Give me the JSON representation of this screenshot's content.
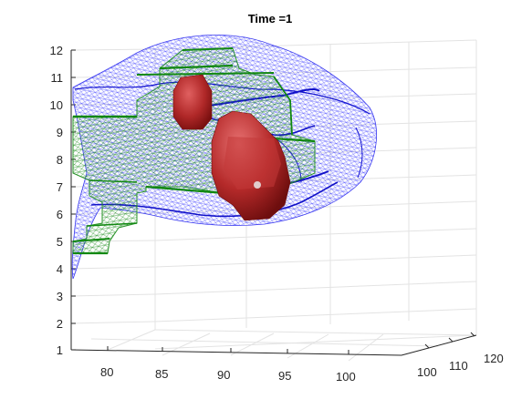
{
  "chart_data": {
    "type": "3d-surface",
    "title": "Time =1",
    "xlabel": "",
    "ylabel": "",
    "zlabel": "",
    "axes": {
      "x": {
        "ticks": [
          80,
          85,
          90,
          95,
          100
        ]
      },
      "y": {
        "ticks": [
          100,
          110,
          120
        ]
      },
      "z": {
        "ticks": [
          1,
          2,
          3,
          4,
          5,
          6,
          7,
          8,
          9,
          10,
          11,
          12
        ],
        "lim": [
          1,
          12
        ]
      }
    },
    "grid": true,
    "box": false,
    "series": [
      {
        "render": "wireframe-mesh",
        "color": "#1a1aff"
      },
      {
        "render": "wireframe-mesh",
        "color": "#229922"
      },
      {
        "render": "shaded-surface",
        "color": "#b32424"
      }
    ]
  }
}
